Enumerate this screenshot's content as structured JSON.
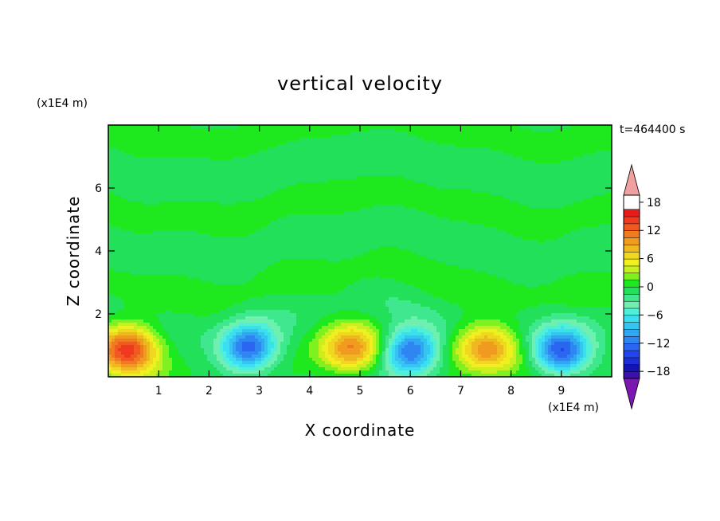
{
  "chart_data": {
    "type": "heatmap",
    "title": "vertical velocity",
    "xlabel": "X coordinate",
    "ylabel": "Z coordinate",
    "x_unit": "(x1E4 m)",
    "y_unit": "(x1E4 m)",
    "time_label": "t=464400 s",
    "xlim": [
      0,
      10
    ],
    "ylim": [
      0,
      8
    ],
    "x_ticks": [
      1,
      2,
      3,
      4,
      5,
      6,
      7,
      8,
      9
    ],
    "y_ticks": [
      2,
      4,
      6
    ],
    "colorbar": {
      "levels": [
        -21,
        -19.5,
        -18,
        -16.5,
        -15,
        -13.5,
        -12,
        -10.5,
        -9,
        -7.5,
        -6,
        -4.5,
        -3,
        -1.5,
        0,
        1.5,
        3,
        4.5,
        6,
        7.5,
        9,
        10.5,
        12,
        13.5,
        15,
        16.5,
        18,
        19.5,
        21
      ],
      "colors": [
        "#7a18b0",
        "#3e0fb0",
        "#1414b4",
        "#1e2fd8",
        "#2244ee",
        "#2a66f0",
        "#2f86f2",
        "#31a6f2",
        "#36c4f0",
        "#3ae0f0",
        "#50f0d8",
        "#70f0b0",
        "#3fe88f",
        "#22e05a",
        "#1ee81e",
        "#7ff020",
        "#c8f020",
        "#f0f020",
        "#f0d820",
        "#f0b820",
        "#f09a20",
        "#f07a20",
        "#f05a20",
        "#f03a20",
        "#e81a1a",
        "#f0a0a0"
      ],
      "tick_values": [
        -18,
        -12,
        -6,
        0,
        6,
        12,
        18
      ],
      "tick_labels": [
        "−18",
        "−12",
        "−6",
        "0",
        "6",
        "12",
        "18"
      ]
    },
    "features": [
      {
        "kind": "updraft",
        "x": 0.4,
        "z": 0.9,
        "peak": 14
      },
      {
        "kind": "downdraft",
        "x": 2.8,
        "z": 0.9,
        "peak": -13
      },
      {
        "kind": "updraft",
        "x": 4.8,
        "z": 0.9,
        "peak": 10
      },
      {
        "kind": "downdraft",
        "x": 6.0,
        "z": 0.8,
        "peak": -13
      },
      {
        "kind": "updraft",
        "x": 7.5,
        "z": 0.9,
        "peak": 10
      },
      {
        "kind": "downdraft",
        "x": 9.0,
        "z": 0.8,
        "peak": -13
      }
    ]
  }
}
